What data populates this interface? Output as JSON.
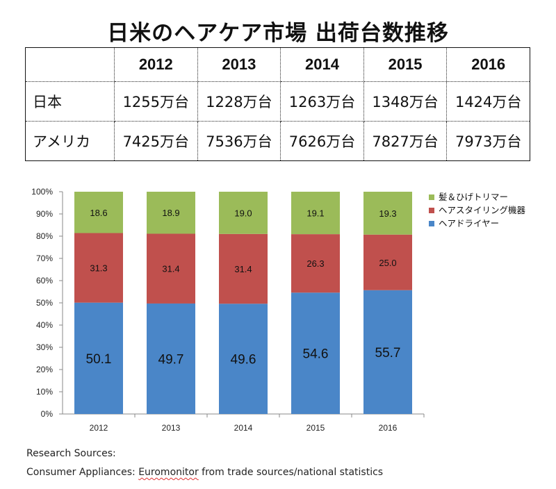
{
  "title": "日米のヘアケア市場 出荷台数推移",
  "table": {
    "years": [
      "2012",
      "2013",
      "2014",
      "2015",
      "2016"
    ],
    "rows": [
      {
        "label": "日本",
        "values": [
          "1255万台",
          "1228万台",
          "1263万台",
          "1348万台",
          "1424万台"
        ]
      },
      {
        "label": "アメリカ",
        "values": [
          "7425万台",
          "7536万台",
          "7626万台",
          "7827万台",
          "7973万台"
        ]
      }
    ]
  },
  "chart_data": {
    "type": "bar",
    "stacked": true,
    "categories": [
      "2012",
      "2013",
      "2014",
      "2015",
      "2016"
    ],
    "series": [
      {
        "name": "ヘアドライヤー",
        "values": [
          50.1,
          49.7,
          49.6,
          54.6,
          55.7
        ],
        "color": "#4a86c8"
      },
      {
        "name": "ヘアスタイリング機器",
        "values": [
          31.3,
          31.4,
          31.4,
          26.3,
          25.0
        ],
        "color": "#c0504d"
      },
      {
        "name": "髪＆ひげトリマー",
        "values": [
          18.6,
          18.9,
          19.0,
          19.1,
          19.3
        ],
        "color": "#9bbb59"
      }
    ],
    "y_ticks": [
      "0%",
      "10%",
      "20%",
      "30%",
      "40%",
      "50%",
      "60%",
      "70%",
      "80%",
      "90%",
      "100%"
    ],
    "ylim": [
      0,
      100
    ],
    "legend_position": "right",
    "grid": false
  },
  "sources": {
    "heading": "Research Sources:",
    "line_prefix": "Consumer Appliances: ",
    "line_marked": "Euromonitor",
    "line_suffix": " from trade sources/national statistics"
  }
}
